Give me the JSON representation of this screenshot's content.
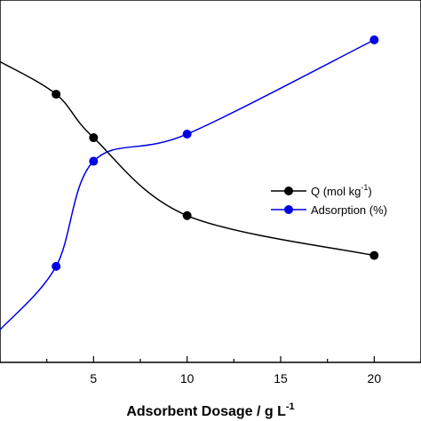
{
  "chart_data": {
    "type": "line",
    "title": "",
    "xlabel": "Adsorbent Dosage / g L",
    "xlabel_sup": "-1",
    "ylabel": "",
    "xlim": [
      0,
      22.5
    ],
    "x_ticks": [
      5,
      10,
      15,
      20
    ],
    "x_tick_labels": [
      "5",
      "10",
      "15",
      "20"
    ],
    "y_relative_range": [
      0,
      1
    ],
    "grid": false,
    "legend_position": "right",
    "series": [
      {
        "name": "Q (mol kg",
        "name_sup": "-1",
        "name_tail": ")",
        "color": "#000000",
        "marker": "circle",
        "x": [
          0,
          3,
          5,
          10,
          20
        ],
        "y": [
          0.83,
          0.74,
          0.62,
          0.405,
          0.295
        ]
      },
      {
        "name": "Adsorption (%)",
        "color": "#0000e6",
        "marker": "circle",
        "x": [
          0,
          3,
          5,
          10,
          20
        ],
        "y": [
          0.09,
          0.265,
          0.555,
          0.63,
          0.89
        ]
      }
    ]
  }
}
